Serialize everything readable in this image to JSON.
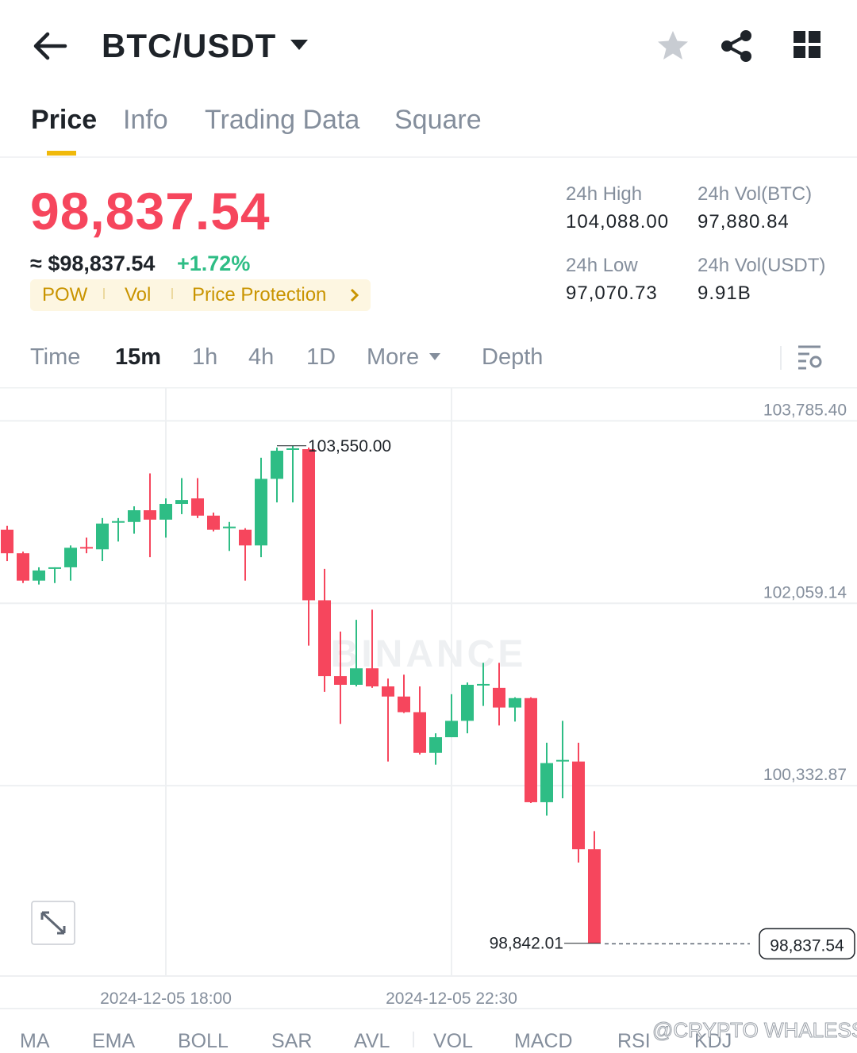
{
  "header": {
    "pair": "BTC/USDT"
  },
  "tabs": [
    "Price",
    "Info",
    "Trading Data",
    "Square"
  ],
  "ticker": {
    "price": "98,837.54",
    "fiat_price": "≈ $98,837.54",
    "change": "+1.72%",
    "tags": [
      "POW",
      "Vol",
      "Price Protection"
    ],
    "stats": [
      {
        "label": "24h High",
        "value": "104,088.00"
      },
      {
        "label": "24h Vol(BTC)",
        "value": "97,880.84"
      },
      {
        "label": "24h Low",
        "value": "97,070.73"
      },
      {
        "label": "24h Vol(USDT)",
        "value": "9.91B"
      }
    ]
  },
  "intervals": [
    "Time",
    "15m",
    "1h",
    "4h",
    "1D",
    "More",
    "Depth"
  ],
  "chart_watermark": "BINANCE",
  "chart_data": {
    "type": "candlestick",
    "categories": [
      null,
      null,
      null,
      null,
      null,
      null,
      null,
      null,
      null,
      null,
      "2024-12-05 18:00",
      null,
      null,
      null,
      null,
      null,
      null,
      null,
      null,
      null,
      null,
      null,
      null,
      null,
      null,
      null,
      null,
      null,
      "2024-12-05 22:30",
      null,
      null,
      null,
      null,
      null,
      null,
      null,
      null,
      null
    ],
    "open": [
      102755,
      102533,
      102274,
      102385,
      102400,
      102592,
      102570,
      102822,
      102829,
      102940,
      102851,
      103000,
      103052,
      102889,
      102770,
      102755,
      102607,
      103237,
      103511,
      103518,
      102088,
      101370,
      101288,
      101444,
      101273,
      101177,
      101029,
      100644,
      100792,
      100947,
      101281,
      101259,
      101073,
      101162,
      100177,
      100562,
      100562,
      99732
    ],
    "high": [
      102792,
      102548,
      102400,
      102400,
      102607,
      102681,
      102866,
      102866,
      102977,
      103289,
      103052,
      103244,
      103244,
      102918,
      102829,
      102770,
      103437,
      103533,
      103550,
      103533,
      102385,
      101792,
      101903,
      101999,
      101347,
      101384,
      101273,
      100829,
      101199,
      101310,
      101496,
      101496,
      101170,
      101170,
      100740,
      100947,
      100740,
      99903
    ],
    "low": [
      102459,
      102251,
      102237,
      102251,
      102274,
      102533,
      102459,
      102644,
      102718,
      102496,
      102681,
      102903,
      102866,
      102740,
      102555,
      102274,
      102496,
      103014,
      103014,
      101659,
      101221,
      100918,
      101273,
      101259,
      100562,
      101021,
      100629,
      100532,
      100792,
      100829,
      101088,
      100903,
      100940,
      100169,
      100051,
      100214,
      99606,
      98842.01
    ],
    "close": [
      102533,
      102274,
      102370,
      102400,
      102585,
      102577,
      102814,
      102837,
      102940,
      102851,
      103000,
      103037,
      102889,
      102755,
      102785,
      102607,
      103237,
      103503,
      103526,
      102088,
      101370,
      101288,
      101444,
      101273,
      101177,
      101029,
      100644,
      100792,
      100947,
      101288,
      101296,
      101073,
      101162,
      100177,
      100547,
      100577,
      99732,
      98842.01
    ],
    "up_color": "#2ebd85",
    "down_color": "#f6465d",
    "ylim": [
      98532,
      104104
    ],
    "yticks": [
      {
        "value": 103785.4,
        "label": "103,785.40"
      },
      {
        "value": 102059.14,
        "label": "102,059.14"
      },
      {
        "value": 100332.87,
        "label": "100,332.87"
      }
    ],
    "grid": true,
    "high_label": "103,550.00",
    "low_label": "98,842.01",
    "last_price": {
      "value": 98837.54,
      "label": "98,837.54"
    }
  },
  "indicators": [
    "MA",
    "EMA",
    "BOLL",
    "SAR",
    "AVL",
    "VOL",
    "MACD",
    "RSI",
    "KDJ"
  ],
  "watermark": "@CRYPTO WHALESS"
}
